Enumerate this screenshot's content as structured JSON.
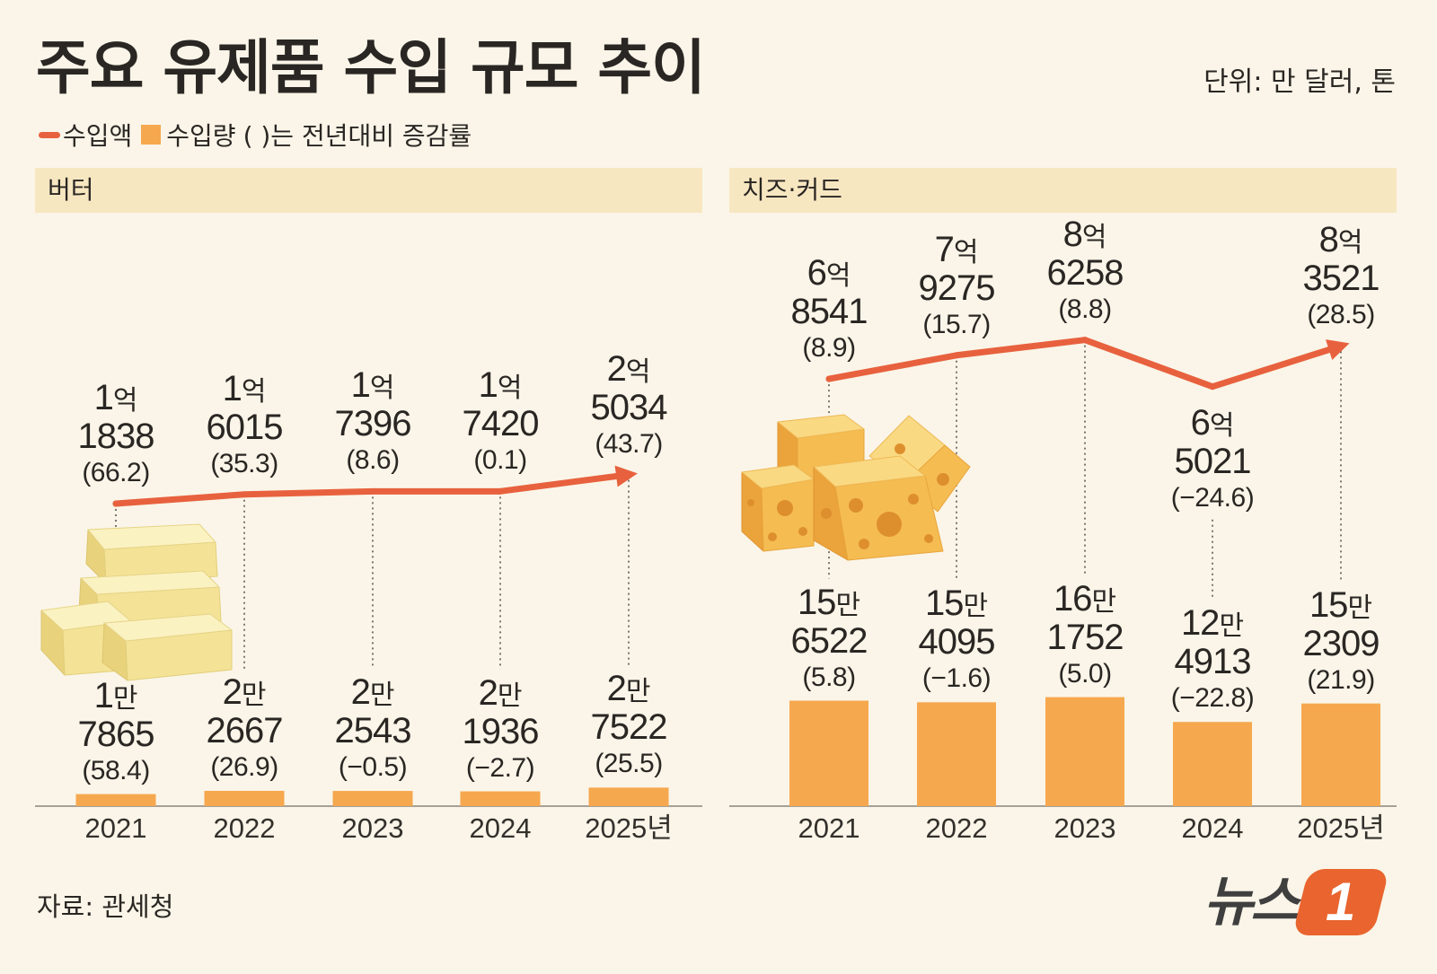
{
  "title": "주요 유제품 수입 규모 추이",
  "unit_note": "단위: 만 달러, 톤",
  "legend": {
    "line_label": "수입액",
    "bar_label": "수입량",
    "note": "( )는 전년대비 증감률",
    "line_icon": "line-swatch",
    "bar_icon": "square-swatch"
  },
  "colors": {
    "background": "#faf5e8",
    "header_band": "#f7e7c1",
    "line": "#e8613e",
    "bar": "#f6a84e",
    "text": "#2a2623",
    "dotted": "#5c5752"
  },
  "chart_data": [
    {
      "type": "bar",
      "title": "버터",
      "illustration": "butter-blocks-icon",
      "categories": [
        "2021",
        "2022",
        "2023",
        "2024",
        "2025년"
      ],
      "series": [
        {
          "name": "수입액",
          "type": "line",
          "values": [
            11838,
            16015,
            17396,
            17420,
            25034
          ],
          "labels": [
            {
              "head": "1",
              "head_unit": "억",
              "main": "1838",
              "change": "(66.2)"
            },
            {
              "head": "1",
              "head_unit": "억",
              "main": "6015",
              "change": "(35.3)"
            },
            {
              "head": "1",
              "head_unit": "억",
              "main": "7396",
              "change": "(8.6)"
            },
            {
              "head": "1",
              "head_unit": "억",
              "main": "7420",
              "change": "(0.1)"
            },
            {
              "head": "2",
              "head_unit": "억",
              "main": "5034",
              "change": "(43.7)"
            }
          ]
        },
        {
          "name": "수입량",
          "type": "bar",
          "values": [
            17865,
            22667,
            22543,
            21936,
            27522
          ],
          "labels": [
            {
              "head": "1",
              "head_unit": "만",
              "main": "7865",
              "change": "(58.4)"
            },
            {
              "head": "2",
              "head_unit": "만",
              "main": "2667",
              "change": "(26.9)"
            },
            {
              "head": "2",
              "head_unit": "만",
              "main": "2543",
              "change": "(−0.5)"
            },
            {
              "head": "2",
              "head_unit": "만",
              "main": "1936",
              "change": "(−2.7)"
            },
            {
              "head": "2",
              "head_unit": "만",
              "main": "7522",
              "change": "(25.5)"
            }
          ]
        }
      ]
    },
    {
      "type": "bar",
      "title": "치즈·커드",
      "illustration": "cheese-cubes-icon",
      "categories": [
        "2021",
        "2022",
        "2023",
        "2024",
        "2025년"
      ],
      "series": [
        {
          "name": "수입액",
          "type": "line",
          "values": [
            68541,
            79275,
            86258,
            65021,
            83521
          ],
          "labels": [
            {
              "head": "6",
              "head_unit": "억",
              "main": "8541",
              "change": "(8.9)"
            },
            {
              "head": "7",
              "head_unit": "억",
              "main": "9275",
              "change": "(15.7)"
            },
            {
              "head": "8",
              "head_unit": "억",
              "main": "6258",
              "change": "(8.8)"
            },
            {
              "head": "6",
              "head_unit": "억",
              "main": "5021",
              "change": "(−24.6)"
            },
            {
              "head": "8",
              "head_unit": "억",
              "main": "3521",
              "change": "(28.5)"
            }
          ]
        },
        {
          "name": "수입량",
          "type": "bar",
          "values": [
            156522,
            154095,
            161752,
            124913,
            152309
          ],
          "labels": [
            {
              "head": "15",
              "head_unit": "만",
              "main": "6522",
              "change": "(5.8)"
            },
            {
              "head": "15",
              "head_unit": "만",
              "main": "4095",
              "change": "(−1.6)"
            },
            {
              "head": "16",
              "head_unit": "만",
              "main": "1752",
              "change": "(5.0)"
            },
            {
              "head": "12",
              "head_unit": "만",
              "main": "4913",
              "change": "(−22.8)"
            },
            {
              "head": "15",
              "head_unit": "만",
              "main": "2309",
              "change": "(21.9)"
            }
          ]
        }
      ]
    }
  ],
  "source": "자료: 관세청",
  "logo": {
    "text": "뉴스",
    "mark": "1"
  }
}
